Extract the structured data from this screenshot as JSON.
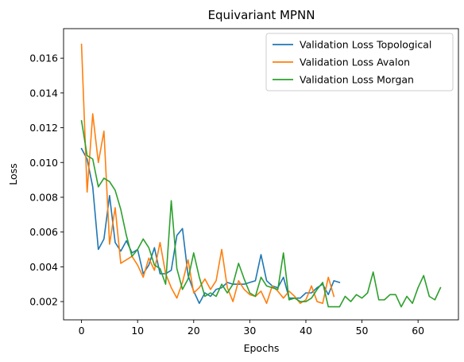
{
  "chart_data": {
    "type": "line",
    "title": "Equivariant MPNN",
    "xlabel": "Epochs",
    "ylabel": "Loss",
    "xlim": [
      -3.2,
      67.2
    ],
    "ylim": [
      0.00095,
      0.0177
    ],
    "xticks": [
      0,
      10,
      20,
      30,
      40,
      50,
      60
    ],
    "yticks": [
      0.002,
      0.004,
      0.006,
      0.008,
      0.01,
      0.012,
      0.014,
      0.016
    ],
    "ytick_labels": [
      "0.002",
      "0.004",
      "0.006",
      "0.008",
      "0.010",
      "0.012",
      "0.014",
      "0.016"
    ],
    "legend_position": "top-right",
    "grid": false,
    "series": [
      {
        "name": "Validation Loss Topological",
        "color": "#1f77b4",
        "values": [
          0.0108,
          0.0102,
          0.0086,
          0.005,
          0.0056,
          0.0081,
          0.0054,
          0.0049,
          0.0055,
          0.0048,
          0.005,
          0.0036,
          0.0041,
          0.0051,
          0.0036,
          0.0036,
          0.0038,
          0.0058,
          0.0062,
          0.0035,
          0.0026,
          0.0019,
          0.0025,
          0.0023,
          0.0027,
          0.0028,
          0.0031,
          0.003,
          0.003,
          0.003,
          0.0031,
          0.0032,
          0.0047,
          0.0032,
          0.0029,
          0.0028,
          0.0034,
          0.0022,
          0.0022,
          0.0022,
          0.0025,
          0.0025,
          0.0028,
          0.003,
          0.0024,
          0.0032,
          0.0031
        ]
      },
      {
        "name": "Validation Loss Avalon",
        "color": "#ff7f0e",
        "values": [
          0.0168,
          0.0083,
          0.0128,
          0.01,
          0.0118,
          0.0053,
          0.0074,
          0.0042,
          0.0044,
          0.0046,
          0.0041,
          0.0034,
          0.0045,
          0.0038,
          0.0054,
          0.0036,
          0.0028,
          0.0022,
          0.0031,
          0.0044,
          0.0025,
          0.0028,
          0.0033,
          0.0027,
          0.0032,
          0.005,
          0.0028,
          0.002,
          0.0032,
          0.0027,
          0.0024,
          0.0023,
          0.0026,
          0.0019,
          0.0029,
          0.0026,
          0.0022,
          0.0026,
          0.0023,
          0.0019,
          0.0021,
          0.0029,
          0.002,
          0.0019,
          0.0034,
          0.0023
        ]
      },
      {
        "name": "Validation Loss Morgan",
        "color": "#2ca02c",
        "values": [
          0.0124,
          0.0104,
          0.0102,
          0.0086,
          0.0091,
          0.0089,
          0.0084,
          0.0073,
          0.0058,
          0.0046,
          0.005,
          0.0056,
          0.0051,
          0.0041,
          0.0039,
          0.003,
          0.0078,
          0.0039,
          0.0027,
          0.0033,
          0.0048,
          0.0034,
          0.0023,
          0.0025,
          0.0023,
          0.003,
          0.0025,
          0.003,
          0.0042,
          0.0033,
          0.0025,
          0.0023,
          0.0034,
          0.0029,
          0.0028,
          0.0027,
          0.0048,
          0.0021,
          0.0022,
          0.002,
          0.002,
          0.0022,
          0.0027,
          0.0031,
          0.0017,
          0.0017,
          0.0017,
          0.0023,
          0.002,
          0.0024,
          0.0022,
          0.0025,
          0.0037,
          0.0021,
          0.0021,
          0.0024,
          0.0024,
          0.0017,
          0.0023,
          0.0019,
          0.0028,
          0.0035,
          0.0023,
          0.0021,
          0.0028
        ]
      }
    ]
  }
}
